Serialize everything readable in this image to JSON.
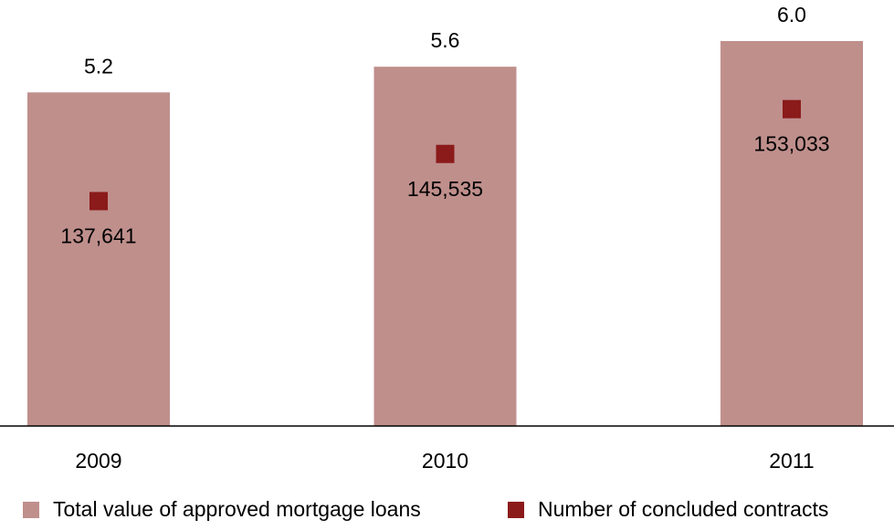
{
  "chart_data": {
    "type": "bar",
    "categories": [
      "2009",
      "2010",
      "2011"
    ],
    "ylim": [
      0,
      6.64
    ],
    "y2lim": [
      100000,
      171300
    ],
    "legend": "bottom",
    "series": [
      {
        "name": "Total value of approved mortgage loans",
        "type": "bar",
        "color": "#bf8f8c",
        "values": [
          5.2,
          5.6,
          6.0
        ],
        "value_labels": [
          "5.2",
          "5.6",
          "6.0"
        ]
      },
      {
        "name": "Number of concluded contracts",
        "type": "point",
        "axis": "y2",
        "color": "#8b1a1a",
        "values": [
          137641,
          145535,
          153033
        ],
        "value_labels": [
          "137,641",
          "145,535",
          "153,033"
        ]
      }
    ]
  }
}
